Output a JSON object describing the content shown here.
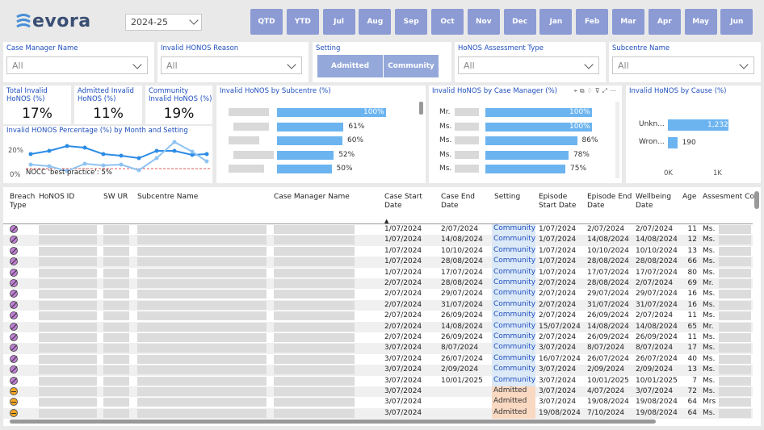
{
  "header": {
    "logo_text": "evora",
    "year_value": "2024-25",
    "period_buttons": [
      "QTD",
      "YTD",
      "Jul",
      "Aug",
      "Sep",
      "Oct",
      "Nov",
      "Dec",
      "Jan",
      "Feb",
      "Mar",
      "Apr",
      "May",
      "Jun"
    ]
  },
  "filters": {
    "case_manager": {
      "label": "Case Manager Name",
      "value": "All"
    },
    "invalid_reason": {
      "label": "Invalid HONOS Reason",
      "value": "All"
    },
    "setting": {
      "label": "Setting",
      "options": [
        "Admitted",
        "Community"
      ]
    },
    "assessment_type": {
      "label": "HoNOS Assessment Type",
      "value": "All"
    },
    "subcentre": {
      "label": "Subcentre Name",
      "value": "All"
    }
  },
  "kpis": {
    "total": {
      "label": "Total Invalid HoNOS (%)",
      "value": "17%"
    },
    "admitted": {
      "label": "Admitted Invalid HoNOS (%)",
      "value": "11%"
    },
    "community": {
      "label": "Community Invalid HoNOS (%)",
      "value": "19%"
    }
  },
  "line_chart": {
    "title": "Invalid HONOS Percentage (%) by Month and Setting",
    "y_ticks": [
      "20%",
      "0%"
    ],
    "annotation": "NOCC 'best practice': 5%",
    "colors": {
      "series_a": "#2b8ce6",
      "series_b": "#8fc3f2",
      "reference": "#e05a5a"
    }
  },
  "subcentre_chart": {
    "title": "Invalid HoNOS by Subcentre (%)",
    "values": [
      "100%",
      "61%",
      "60%",
      "52%",
      "50%"
    ],
    "fractions": [
      1.0,
      0.61,
      0.6,
      0.52,
      0.5
    ]
  },
  "case_manager_chart": {
    "title": "Invalid HoNOS by Case Manager (%)",
    "labels": [
      "Mr.",
      "Ms.",
      "Ms.",
      "Ms.",
      "Ms."
    ],
    "values": [
      "100%",
      "100%",
      "86%",
      "78%",
      "75%"
    ],
    "fractions": [
      1.0,
      1.0,
      0.86,
      0.78,
      0.75
    ]
  },
  "cause_chart": {
    "title": "Invalid HoNOS by Cause (%)",
    "labels": [
      "Unkn...",
      "Wron..."
    ],
    "values": [
      "1,232",
      "190"
    ],
    "counts": [
      1232,
      190
    ],
    "x_ticks": [
      "0K",
      "1K"
    ]
  },
  "table": {
    "headers": {
      "breach": "Breach Type",
      "honos_id": "HoNOS ID",
      "sw_ur": "SW UR",
      "subcentre": "Subcentre Name",
      "case_manager": "Case Manager Name",
      "case_start": "Case Start Date",
      "case_end": "Case End Date",
      "setting": "Setting",
      "episode_start": "Episode Start Date",
      "episode_end": "Episode End Date",
      "wellbeing": "Wellbeing Date",
      "age": "Age",
      "assessment": "Assesment Con"
    },
    "rows": [
      {
        "breach": "purple",
        "cs": "1/07/2024",
        "ce": "2/07/2024",
        "set": "Community",
        "es": "1/07/2024",
        "ee": "2/07/2024",
        "wb": "2/07/2024",
        "age": "11",
        "as": "Ms."
      },
      {
        "breach": "purple",
        "cs": "1/07/2024",
        "ce": "14/08/2024",
        "set": "Community",
        "es": "1/07/2024",
        "ee": "14/08/2024",
        "wb": "14/08/2024",
        "age": "12",
        "as": "Ms."
      },
      {
        "breach": "purple",
        "cs": "1/07/2024",
        "ce": "10/10/2024",
        "set": "Community",
        "es": "1/07/2024",
        "ee": "10/10/2024",
        "wb": "10/10/2024",
        "age": "13",
        "as": "Ms."
      },
      {
        "breach": "purple",
        "cs": "1/07/2024",
        "ce": "28/08/2024",
        "set": "Community",
        "es": "1/07/2024",
        "ee": "28/08/2024",
        "wb": "28/08/2024",
        "age": "66",
        "as": "Ms."
      },
      {
        "breach": "purple",
        "cs": "1/07/2024",
        "ce": "17/07/2024",
        "set": "Community",
        "es": "1/07/2024",
        "ee": "17/07/2024",
        "wb": "17/07/2024",
        "age": "80",
        "as": "Ms."
      },
      {
        "breach": "purple",
        "cs": "2/07/2024",
        "ce": "28/08/2024",
        "set": "Community",
        "es": "2/07/2024",
        "ee": "28/08/2024",
        "wb": "2/07/2024",
        "age": "69",
        "as": "Mr."
      },
      {
        "breach": "purple",
        "cs": "2/07/2024",
        "ce": "29/07/2024",
        "set": "Community",
        "es": "2/07/2024",
        "ee": "29/07/2024",
        "wb": "29/07/2024",
        "age": "16",
        "as": "Ms."
      },
      {
        "breach": "purple",
        "cs": "2/07/2024",
        "ce": "31/07/2024",
        "set": "Community",
        "es": "2/07/2024",
        "ee": "31/07/2024",
        "wb": "31/07/2024",
        "age": "16",
        "as": "Ms."
      },
      {
        "breach": "purple",
        "cs": "2/07/2024",
        "ce": "26/09/2024",
        "set": "Community",
        "es": "2/07/2024",
        "ee": "26/09/2024",
        "wb": "2/07/2024",
        "age": "11",
        "as": "Ms."
      },
      {
        "breach": "purple",
        "cs": "2/07/2024",
        "ce": "14/08/2024",
        "set": "Community",
        "es": "15/07/2024",
        "ee": "14/08/2024",
        "wb": "14/08/2024",
        "age": "65",
        "as": "Mr."
      },
      {
        "breach": "purple",
        "cs": "2/07/2024",
        "ce": "26/09/2024",
        "set": "Community",
        "es": "2/07/2024",
        "ee": "26/09/2024",
        "wb": "26/09/2024",
        "age": "11",
        "as": "Ms."
      },
      {
        "breach": "purple",
        "cs": "3/07/2024",
        "ce": "8/07/2024",
        "set": "Community",
        "es": "3/07/2024",
        "ee": "8/07/2024",
        "wb": "8/07/2024",
        "age": "17",
        "as": "Ms."
      },
      {
        "breach": "purple",
        "cs": "3/07/2024",
        "ce": "26/07/2024",
        "set": "Community",
        "es": "16/07/2024",
        "ee": "26/07/2024",
        "wb": "26/07/2024",
        "age": "40",
        "as": "Ms."
      },
      {
        "breach": "purple",
        "cs": "3/07/2024",
        "ce": "2/09/2024",
        "set": "Community",
        "es": "3/07/2024",
        "ee": "2/09/2024",
        "wb": "2/09/2024",
        "age": "13",
        "as": "Ms."
      },
      {
        "breach": "purple",
        "cs": "3/07/2024",
        "ce": "10/01/2025",
        "set": "Community",
        "es": "3/07/2024",
        "ee": "10/01/2025",
        "wb": "10/01/2025",
        "age": "7",
        "as": "Ms."
      },
      {
        "breach": "orange",
        "cs": "3/07/2024",
        "ce": "",
        "set": "Admitted",
        "es": "3/07/2024",
        "ee": "4/07/2024",
        "wb": "3/07/2024",
        "age": "72",
        "as": "Ms."
      },
      {
        "breach": "orange",
        "cs": "3/07/2024",
        "ce": "",
        "set": "Admitted",
        "es": "3/07/2024",
        "ee": "19/08/2024",
        "wb": "19/08/2024",
        "age": "64",
        "as": "Mrs"
      },
      {
        "breach": "orange",
        "cs": "3/07/2024",
        "ce": "",
        "set": "Admitted",
        "es": "19/08/2024",
        "ee": "7/10/2024",
        "wb": "19/08/2024",
        "age": "64",
        "as": "Ms."
      }
    ]
  }
}
